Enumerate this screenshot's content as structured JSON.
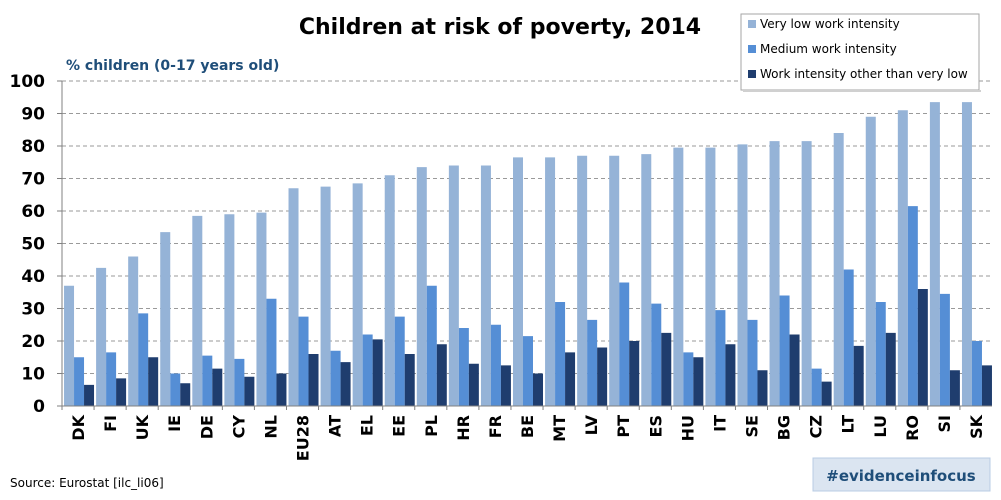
{
  "chart_data": {
    "type": "bar",
    "title": "Children at risk of poverty, 2014",
    "ylabel": "% children (0-17 years old)",
    "xlabel": "",
    "ylim": [
      0,
      100
    ],
    "yticks": [
      0,
      10,
      20,
      30,
      40,
      50,
      60,
      70,
      80,
      90,
      100
    ],
    "grid": true,
    "legend_position": "top-right",
    "categories": [
      "DK",
      "FI",
      "UK",
      "IE",
      "DE",
      "CY",
      "NL",
      "EU28",
      "AT",
      "EL",
      "EE",
      "PL",
      "HR",
      "FR",
      "BE",
      "MT",
      "LV",
      "PT",
      "ES",
      "HU",
      "IT",
      "SE",
      "BG",
      "CZ",
      "LT",
      "LU",
      "RO",
      "SI",
      "SK"
    ],
    "series": [
      {
        "name": "Very low work intensity",
        "color": "#95b3d7",
        "values": [
          37,
          42.5,
          46,
          53.5,
          58.5,
          59,
          59.5,
          67,
          67.5,
          68.5,
          71,
          73.5,
          74,
          74,
          76.5,
          76.5,
          77,
          77,
          77.5,
          79.5,
          79.5,
          80.5,
          81.5,
          81.5,
          84,
          89,
          91,
          93.5,
          93.5
        ]
      },
      {
        "name": "Medium work intensity",
        "color": "#558ed5",
        "values": [
          15,
          16.5,
          28.5,
          10,
          15.5,
          14.5,
          33,
          27.5,
          17,
          22,
          27.5,
          37,
          24,
          25,
          21.5,
          32,
          26.5,
          38,
          31.5,
          16.5,
          29.5,
          26.5,
          34,
          11.5,
          42,
          32,
          61.5,
          34.5,
          20
        ]
      },
      {
        "name": "Work intensity other than very low",
        "color": "#1f3d6e",
        "values": [
          6.5,
          8.5,
          15,
          7,
          11.5,
          9,
          10,
          16,
          13.5,
          20.5,
          16,
          19,
          13,
          12.5,
          10,
          16.5,
          18,
          20,
          22.5,
          15,
          19,
          11,
          22,
          7.5,
          18.5,
          22.5,
          36,
          11,
          12.5
        ]
      }
    ]
  },
  "source": "Source: Eurostat [ilc_li06]",
  "tag": "#evidenceinfocus"
}
